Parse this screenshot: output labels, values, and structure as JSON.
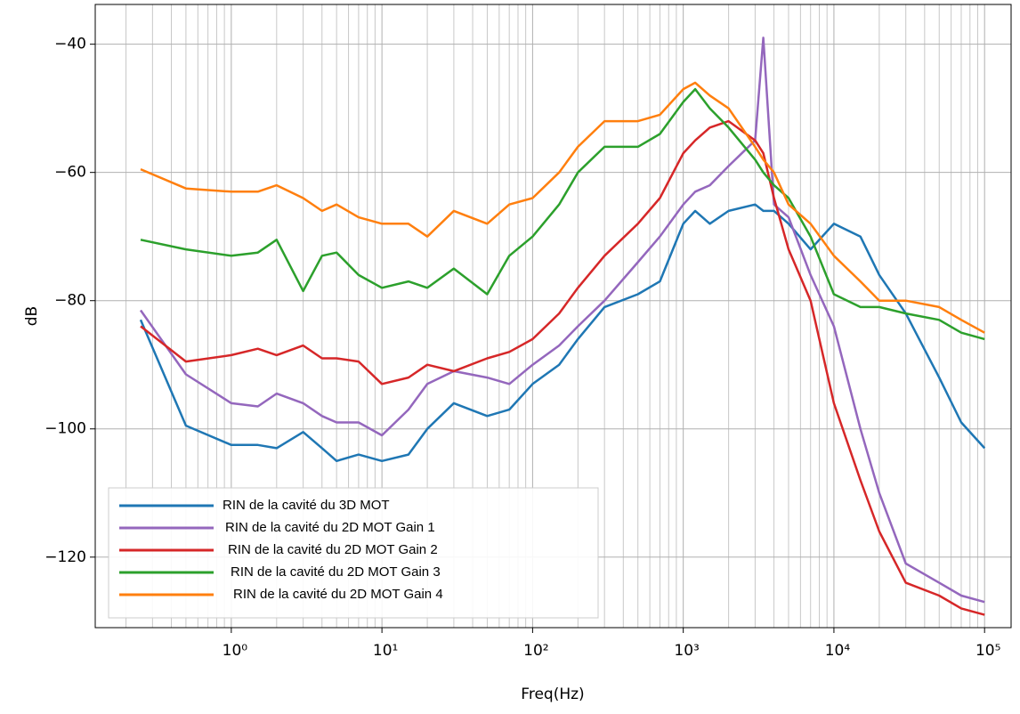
{
  "chart_data": {
    "type": "line",
    "xlabel": "Freq(Hz)",
    "ylabel": "dB",
    "xscale": "log",
    "grid": true,
    "minor_grid": true,
    "legend": "lower left",
    "xlim": [
      0.125,
      150000
    ],
    "ylim": [
      -131,
      -33.8
    ],
    "xticks": [
      {
        "value": 1,
        "label": "10⁰"
      },
      {
        "value": 10,
        "label": "10¹"
      },
      {
        "value": 100,
        "label": "10²"
      },
      {
        "value": 1000,
        "label": "10³"
      },
      {
        "value": 10000,
        "label": "10⁴"
      },
      {
        "value": 100000,
        "label": "10⁵"
      }
    ],
    "yticks": [
      {
        "value": -120,
        "label": "−120"
      },
      {
        "value": -100,
        "label": "−100"
      },
      {
        "value": -80,
        "label": "−80"
      },
      {
        "value": -60,
        "label": "−60"
      },
      {
        "value": -40,
        "label": "−40"
      }
    ],
    "x": [
      0.25,
      0.5,
      1,
      1.5,
      2,
      3,
      4,
      5,
      7,
      10,
      15,
      20,
      30,
      50,
      70,
      100,
      150,
      200,
      300,
      500,
      700,
      1000,
      1200,
      1500,
      2000,
      3000,
      3400,
      4000,
      5000,
      7000,
      10000,
      15000,
      20000,
      30000,
      50000,
      70000,
      100000
    ],
    "series": [
      {
        "name": "RIN de la cavité du 3D MOT",
        "color": "#1f77b4",
        "values": [
          -83,
          -99.5,
          -102.5,
          -102.5,
          -103,
          -100.5,
          -103,
          -105,
          -104,
          -105,
          -104,
          -100,
          -96,
          -98,
          -97,
          -93,
          -90,
          -86,
          -81,
          -79,
          -77,
          -68,
          -66,
          -68,
          -66,
          -65,
          -66,
          -66,
          -68,
          -72,
          -68,
          -70,
          -76,
          -82,
          -92,
          -99,
          -103
        ]
      },
      {
        "name": "RIN de la cavité du 2D MOT Gain 1",
        "color": "#9467bd",
        "values": [
          -81.5,
          -91.5,
          -96,
          -96.5,
          -94.5,
          -96,
          -98,
          -99,
          -99,
          -101,
          -97,
          -93,
          -91,
          -92,
          -93,
          -90,
          -87,
          -84,
          -80,
          -74,
          -70,
          -65,
          -63,
          -62,
          -59,
          -55,
          -39,
          -65,
          -67,
          -76,
          -84,
          -100,
          -110,
          -121,
          -124,
          -126,
          -127
        ]
      },
      {
        "name": "RIN de la cavité du 2D MOT Gain 2",
        "color": "#d62728",
        "values": [
          -84,
          -89.5,
          -88.5,
          -87.5,
          -88.5,
          -87,
          -89,
          -89,
          -89.5,
          -93,
          -92,
          -90,
          -91,
          -89,
          -88,
          -86,
          -82,
          -78,
          -73,
          -68,
          -64,
          -57,
          -55,
          -53,
          -52,
          -55,
          -57,
          -64,
          -72,
          -80,
          -96,
          -108,
          -116,
          -124,
          -126,
          -128,
          -129
        ]
      },
      {
        "name": "RIN de la cavité du 2D MOT Gain 3",
        "color": "#2ca02c",
        "values": [
          -70.5,
          -72,
          -73,
          -72.5,
          -70.5,
          -78.5,
          -73,
          -72.5,
          -76,
          -78,
          -77,
          -78,
          -75,
          -79,
          -73,
          -70,
          -65,
          -60,
          -56,
          -56,
          -54,
          -49,
          -47,
          -50,
          -53,
          -58,
          -60,
          -62,
          -64,
          -70,
          -79,
          -81,
          -81,
          -82,
          -83,
          -85,
          -86
        ]
      },
      {
        "name": "RIN de la cavité du 2D MOT Gain 4",
        "color": "#ff7f0e",
        "values": [
          -59.5,
          -62.5,
          -63,
          -63,
          -62,
          -64,
          -66,
          -65,
          -67,
          -68,
          -68,
          -70,
          -66,
          -68,
          -65,
          -64,
          -60,
          -56,
          -52,
          -52,
          -51,
          -47,
          -46,
          -48,
          -50,
          -56,
          -58,
          -60,
          -65,
          -68,
          -73,
          -77,
          -80,
          -80,
          -81,
          -83,
          -85
        ]
      }
    ]
  }
}
